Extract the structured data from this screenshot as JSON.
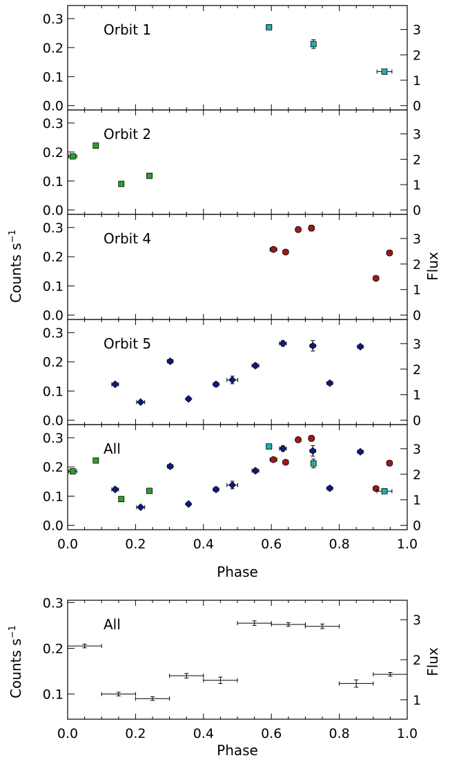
{
  "figure": {
    "ylabel_left": "Counts s",
    "ylabel_left_sup": "−1",
    "ylabel_right": "Flux",
    "xlabel": "Phase",
    "xlabel_bottom": "Phase",
    "bottom_ylabel_left": "Counts s",
    "bottom_ylabel_left_sup": "−1",
    "bottom_ylabel_right": "Flux"
  },
  "colors": {
    "orbit1": "#20b2aa",
    "orbit2": "#2ca02c",
    "orbit4": "#a01818",
    "orbit5": "#0a1a8c",
    "binned": "#000000",
    "axis": "#000000"
  },
  "chart_data": [
    {
      "type": "scatter",
      "panel_label": "Orbit 1",
      "xlim": [
        0.0,
        1.0
      ],
      "ylim": [
        -0.015,
        0.345
      ],
      "yticks": [
        "0.0",
        "0.1",
        "0.2",
        "0.3"
      ],
      "flux_ticks": [
        "0",
        "1",
        "2",
        "3"
      ],
      "series": [
        {
          "color_key": "orbit1",
          "marker": "square",
          "points": [
            {
              "x": 0.593,
              "y": 0.27,
              "xerr": 0.008,
              "yerr": 0.005
            },
            {
              "x": 0.724,
              "y": 0.212,
              "xerr": 0.006,
              "yerr": 0.015
            },
            {
              "x": 0.933,
              "y": 0.117,
              "xerr": 0.022,
              "yerr": 0.005
            }
          ]
        }
      ]
    },
    {
      "type": "scatter",
      "panel_label": "Orbit 2",
      "xlim": [
        0.0,
        1.0
      ],
      "ylim": [
        -0.015,
        0.345
      ],
      "yticks": [
        "0.0",
        "0.1",
        "0.2",
        "0.3"
      ],
      "flux_ticks": [
        "0",
        "1",
        "2",
        "3"
      ],
      "series": [
        {
          "color_key": "orbit2",
          "marker": "square",
          "points": [
            {
              "x": 0.015,
              "y": 0.185,
              "xerr": 0.012,
              "yerr": 0.008
            },
            {
              "x": 0.083,
              "y": 0.222,
              "xerr": 0.006,
              "yerr": 0.005
            },
            {
              "x": 0.158,
              "y": 0.09,
              "xerr": 0.006,
              "yerr": 0.004
            },
            {
              "x": 0.241,
              "y": 0.118,
              "xerr": 0.008,
              "yerr": 0.005
            }
          ]
        }
      ]
    },
    {
      "type": "scatter",
      "panel_label": "Orbit 4",
      "xlim": [
        0.0,
        1.0
      ],
      "ylim": [
        -0.015,
        0.345
      ],
      "yticks": [
        "0.0",
        "0.1",
        "0.2",
        "0.3"
      ],
      "flux_ticks": [
        "0",
        "1",
        "2",
        "3"
      ],
      "series": [
        {
          "color_key": "orbit4",
          "marker": "circle",
          "points": [
            {
              "x": 0.606,
              "y": 0.225,
              "xerr": 0.01,
              "yerr": 0.008
            },
            {
              "x": 0.642,
              "y": 0.216,
              "xerr": 0.008,
              "yerr": 0.007
            },
            {
              "x": 0.679,
              "y": 0.293,
              "xerr": 0.008,
              "yerr": 0.009
            },
            {
              "x": 0.718,
              "y": 0.298,
              "xerr": 0.008,
              "yerr": 0.01
            },
            {
              "x": 0.908,
              "y": 0.126,
              "xerr": 0.008,
              "yerr": 0.007
            },
            {
              "x": 0.948,
              "y": 0.213,
              "xerr": 0.008,
              "yerr": 0.009
            }
          ]
        }
      ]
    },
    {
      "type": "scatter",
      "panel_label": "Orbit 5",
      "xlim": [
        0.0,
        1.0
      ],
      "ylim": [
        -0.015,
        0.345
      ],
      "yticks": [
        "0.0",
        "0.1",
        "0.2",
        "0.3"
      ],
      "flux_ticks": [
        "0",
        "1",
        "2",
        "3"
      ],
      "series": [
        {
          "color_key": "orbit5",
          "marker": "diamond",
          "points": [
            {
              "x": 0.14,
              "y": 0.123,
              "xerr": 0.01,
              "yerr": 0.007
            },
            {
              "x": 0.215,
              "y": 0.062,
              "xerr": 0.012,
              "yerr": 0.005
            },
            {
              "x": 0.302,
              "y": 0.202,
              "xerr": 0.008,
              "yerr": 0.007
            },
            {
              "x": 0.356,
              "y": 0.073,
              "xerr": 0.006,
              "yerr": 0.005
            },
            {
              "x": 0.437,
              "y": 0.123,
              "xerr": 0.008,
              "yerr": 0.007
            },
            {
              "x": 0.485,
              "y": 0.138,
              "xerr": 0.016,
              "yerr": 0.013
            },
            {
              "x": 0.553,
              "y": 0.187,
              "xerr": 0.01,
              "yerr": 0.008
            },
            {
              "x": 0.634,
              "y": 0.263,
              "xerr": 0.01,
              "yerr": 0.009
            },
            {
              "x": 0.722,
              "y": 0.255,
              "xerr": 0.008,
              "yerr": 0.018
            },
            {
              "x": 0.772,
              "y": 0.127,
              "xerr": 0.008,
              "yerr": 0.006
            },
            {
              "x": 0.862,
              "y": 0.252,
              "xerr": 0.008,
              "yerr": 0.006
            }
          ]
        }
      ]
    },
    {
      "type": "scatter",
      "panel_label": "All",
      "xlim": [
        0.0,
        1.0
      ],
      "ylim": [
        -0.015,
        0.345
      ],
      "yticks": [
        "0.0",
        "0.1",
        "0.2",
        "0.3"
      ],
      "flux_ticks": [
        "0",
        "1",
        "2",
        "3"
      ],
      "xticks": [
        "0.0",
        "0.2",
        "0.4",
        "0.6",
        "0.8",
        "1.0"
      ],
      "series": [
        {
          "color_key": "orbit2",
          "marker": "square",
          "points": [
            {
              "x": 0.015,
              "y": 0.185,
              "xerr": 0.012,
              "yerr": 0.008
            },
            {
              "x": 0.083,
              "y": 0.222,
              "xerr": 0.006,
              "yerr": 0.005
            },
            {
              "x": 0.158,
              "y": 0.09,
              "xerr": 0.006,
              "yerr": 0.004
            },
            {
              "x": 0.241,
              "y": 0.118,
              "xerr": 0.008,
              "yerr": 0.005
            }
          ]
        },
        {
          "color_key": "orbit5",
          "marker": "diamond",
          "points": [
            {
              "x": 0.14,
              "y": 0.123,
              "xerr": 0.01,
              "yerr": 0.007
            },
            {
              "x": 0.215,
              "y": 0.062,
              "xerr": 0.012,
              "yerr": 0.005
            },
            {
              "x": 0.302,
              "y": 0.202,
              "xerr": 0.008,
              "yerr": 0.007
            },
            {
              "x": 0.356,
              "y": 0.073,
              "xerr": 0.006,
              "yerr": 0.005
            },
            {
              "x": 0.437,
              "y": 0.123,
              "xerr": 0.008,
              "yerr": 0.007
            },
            {
              "x": 0.485,
              "y": 0.138,
              "xerr": 0.016,
              "yerr": 0.013
            },
            {
              "x": 0.553,
              "y": 0.187,
              "xerr": 0.01,
              "yerr": 0.008
            },
            {
              "x": 0.634,
              "y": 0.263,
              "xerr": 0.01,
              "yerr": 0.009
            },
            {
              "x": 0.722,
              "y": 0.255,
              "xerr": 0.008,
              "yerr": 0.018
            },
            {
              "x": 0.772,
              "y": 0.127,
              "xerr": 0.008,
              "yerr": 0.006
            },
            {
              "x": 0.862,
              "y": 0.252,
              "xerr": 0.008,
              "yerr": 0.006
            }
          ]
        },
        {
          "color_key": "orbit4",
          "marker": "circle",
          "points": [
            {
              "x": 0.606,
              "y": 0.225,
              "xerr": 0.01,
              "yerr": 0.008
            },
            {
              "x": 0.642,
              "y": 0.216,
              "xerr": 0.008,
              "yerr": 0.007
            },
            {
              "x": 0.679,
              "y": 0.293,
              "xerr": 0.008,
              "yerr": 0.009
            },
            {
              "x": 0.718,
              "y": 0.298,
              "xerr": 0.008,
              "yerr": 0.01
            },
            {
              "x": 0.908,
              "y": 0.126,
              "xerr": 0.008,
              "yerr": 0.007
            },
            {
              "x": 0.948,
              "y": 0.213,
              "xerr": 0.008,
              "yerr": 0.009
            }
          ]
        },
        {
          "color_key": "orbit1",
          "marker": "square",
          "points": [
            {
              "x": 0.593,
              "y": 0.27,
              "xerr": 0.008,
              "yerr": 0.005
            },
            {
              "x": 0.724,
              "y": 0.212,
              "xerr": 0.006,
              "yerr": 0.015
            },
            {
              "x": 0.933,
              "y": 0.117,
              "xerr": 0.022,
              "yerr": 0.005
            }
          ]
        }
      ]
    },
    {
      "type": "scatter",
      "panel_label": "All",
      "xlim": [
        0.0,
        1.0
      ],
      "ylim": [
        0.045,
        0.305
      ],
      "yticks": [
        "0.1",
        "0.2",
        "0.3"
      ],
      "flux_ticks": [
        "1",
        "2",
        "3"
      ],
      "xticks": [
        "0.0",
        "0.2",
        "0.4",
        "0.6",
        "0.8",
        "1.0"
      ],
      "series": [
        {
          "color_key": "binned",
          "marker": "plus",
          "points": [
            {
              "x": 0.05,
              "y": 0.205,
              "xerr": 0.05,
              "yerr": 0.004
            },
            {
              "x": 0.15,
              "y": 0.1,
              "xerr": 0.05,
              "yerr": 0.004
            },
            {
              "x": 0.25,
              "y": 0.09,
              "xerr": 0.05,
              "yerr": 0.004
            },
            {
              "x": 0.35,
              "y": 0.14,
              "xerr": 0.05,
              "yerr": 0.005
            },
            {
              "x": 0.45,
              "y": 0.13,
              "xerr": 0.05,
              "yerr": 0.007
            },
            {
              "x": 0.55,
              "y": 0.255,
              "xerr": 0.05,
              "yerr": 0.005
            },
            {
              "x": 0.65,
              "y": 0.252,
              "xerr": 0.05,
              "yerr": 0.004
            },
            {
              "x": 0.75,
              "y": 0.248,
              "xerr": 0.05,
              "yerr": 0.005
            },
            {
              "x": 0.85,
              "y": 0.123,
              "xerr": 0.05,
              "yerr": 0.008
            },
            {
              "x": 0.95,
              "y": 0.143,
              "xerr": 0.05,
              "yerr": 0.004
            }
          ]
        }
      ]
    }
  ]
}
